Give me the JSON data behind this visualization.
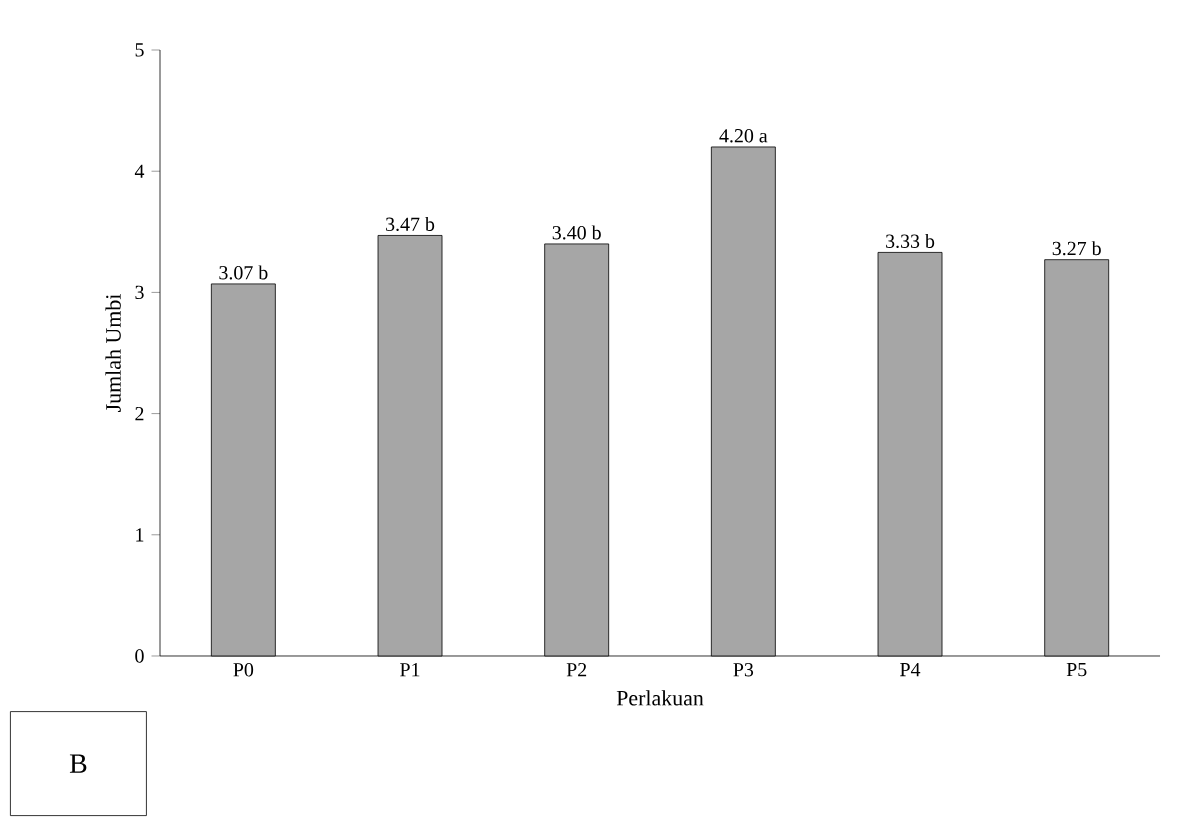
{
  "chart_data": {
    "type": "bar",
    "xlabel": "Perlakuan",
    "ylabel": "Jumlah Umbi",
    "categories": [
      "P0",
      "P1",
      "P2",
      "P3",
      "P4",
      "P5"
    ],
    "values": [
      3.07,
      3.47,
      3.4,
      4.2,
      3.33,
      3.27
    ],
    "value_labels": [
      "3.07 b",
      "3.47 b",
      "3.40 b",
      "4.20 a",
      "3.33 b",
      "3.27 b"
    ],
    "color": "#a6a6a6",
    "ylim": [
      0,
      5
    ],
    "yticks": [
      0,
      1,
      2,
      3,
      4,
      5
    ],
    "grid": false,
    "annotations": [
      "B"
    ]
  }
}
